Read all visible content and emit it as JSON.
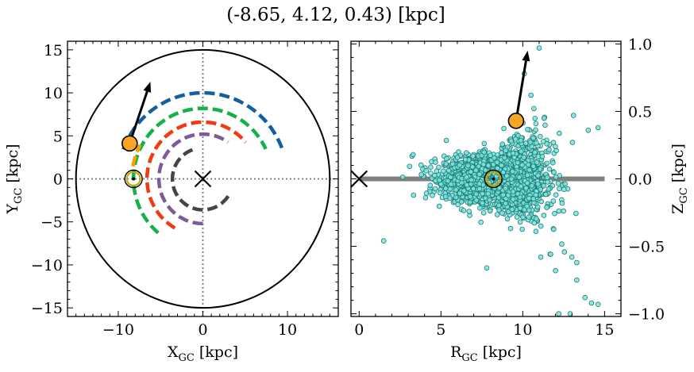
{
  "title": "(-8.65, 4.12, 0.43) [kpc]",
  "colors": {
    "arm_outer": "#12609f",
    "arm_green": "#14b14a",
    "arm_red": "#ef3a12",
    "arm_purple": "#7f5a9a",
    "arm_inner": "#454545",
    "arm_orange": "#f5a300",
    "star_fill": "#f5a623",
    "sun_ring": "#c8a000",
    "scatter_fill": "#7ee3dd",
    "scatter_edge": "#1a7b74",
    "disk_line": "#808080"
  },
  "chart_data": [
    {
      "type": "line",
      "xlabel": "X",
      "xlabel_sub": "GC",
      "xlabel_unit": "[kpc]",
      "ylabel": "Y",
      "ylabel_sub": "GC",
      "ylabel_unit": "[kpc]",
      "xlim": [
        -16,
        16
      ],
      "ylim": [
        -16,
        16
      ],
      "xticks": [
        -10,
        0,
        10
      ],
      "yticks": [
        -15,
        -10,
        -5,
        0,
        5,
        10,
        15
      ],
      "grid": false,
      "boundary_circle_radius": 15,
      "galactic_center": [
        0,
        0
      ],
      "sun": [
        -8.2,
        0
      ],
      "target": [
        -8.65,
        4.12
      ],
      "velocity_arrow_end": [
        -6.2,
        11.3
      ],
      "arms": [
        {
          "color_key": "arm_outer",
          "radius": 10.0,
          "angle_start_deg": 160,
          "angle_end_deg": 20
        },
        {
          "color_key": "arm_green",
          "radius": 8.2,
          "angle_start_deg": 230,
          "angle_end_deg": 25
        },
        {
          "color_key": "arm_red",
          "radius": 6.6,
          "angle_start_deg": 240,
          "angle_end_deg": 40
        },
        {
          "color_key": "arm_purple",
          "radius": 5.2,
          "angle_start_deg": 270,
          "angle_end_deg": 55
        },
        {
          "color_key": "arm_inner",
          "radius": 3.6,
          "angle_start_deg": 110,
          "angle_end_deg": 330
        },
        {
          "color_key": "arm_orange",
          "radius": 8.4,
          "angle_start_deg": 170,
          "angle_end_deg": 152
        }
      ]
    },
    {
      "type": "scatter",
      "xlabel": "R",
      "xlabel_sub": "GC",
      "xlabel_unit": "[kpc]",
      "ylabel": "Z",
      "ylabel_sub": "GC",
      "ylabel_unit": "[kpc]",
      "xlim": [
        -0.5,
        16
      ],
      "ylim": [
        -1.02,
        1.02
      ],
      "xticks": [
        0,
        5,
        10,
        15
      ],
      "yticks": [
        -1.0,
        -0.5,
        0.0,
        0.5,
        1.0
      ],
      "ytick_labels": [
        "−1.0",
        "−0.5",
        "0.0",
        "0.5",
        "1.0"
      ],
      "grid": false,
      "galactic_center": [
        0,
        0
      ],
      "disk_line": {
        "x": [
          0,
          15
        ],
        "y": [
          0,
          0
        ]
      },
      "sun": [
        8.2,
        0.0
      ],
      "target": [
        9.59,
        0.43
      ],
      "velocity_arrow_end": [
        10.3,
        0.95
      ],
      "cloud": {
        "count": 2600,
        "core_center": [
          8.3,
          0.0
        ],
        "core_sigma_R": 1.5,
        "core_sigma_Z": 0.08,
        "R_range": [
          1.5,
          14.6
        ],
        "Z_range": [
          -1.0,
          1.0
        ]
      },
      "outliers": [
        [
          1.5,
          -0.46
        ],
        [
          3.3,
          0.18
        ],
        [
          4.1,
          0.06
        ],
        [
          11.0,
          0.97
        ],
        [
          13.0,
          -0.58
        ],
        [
          13.3,
          -0.62
        ],
        [
          13.8,
          -0.88
        ],
        [
          14.2,
          -0.92
        ],
        [
          14.6,
          -0.93
        ],
        [
          12.2,
          -1.0
        ],
        [
          12.9,
          -1.0
        ],
        [
          11.1,
          -0.58
        ],
        [
          12.0,
          -0.68
        ],
        [
          10.5,
          0.62
        ],
        [
          10.1,
          0.78
        ],
        [
          13.1,
          0.47
        ],
        [
          14.0,
          0.36
        ],
        [
          14.6,
          0.38
        ],
        [
          7.8,
          -0.66
        ],
        [
          13.3,
          -0.75
        ]
      ]
    }
  ]
}
